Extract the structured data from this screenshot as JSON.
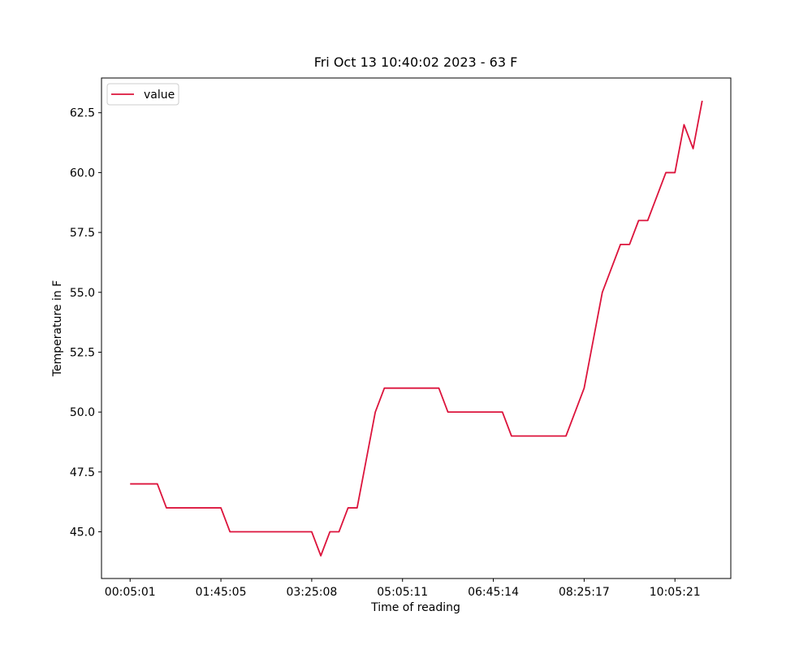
{
  "chart_data": {
    "type": "line",
    "title": "Fri Oct 13 10:40:02 2023 - 63 F",
    "xlabel": "Time of reading",
    "ylabel": "Temperature in F",
    "categories": [
      "00:05:01",
      null,
      null,
      null,
      null,
      null,
      null,
      null,
      null,
      null,
      "01:45:05",
      null,
      null,
      null,
      null,
      null,
      null,
      null,
      null,
      null,
      "03:25:08",
      null,
      null,
      null,
      null,
      null,
      null,
      null,
      null,
      null,
      "05:05:11",
      null,
      null,
      null,
      null,
      null,
      null,
      null,
      null,
      null,
      "06:45:14",
      null,
      null,
      null,
      null,
      null,
      null,
      null,
      null,
      null,
      "08:25:17",
      null,
      null,
      null,
      null,
      null,
      null,
      null,
      null,
      null,
      "10:05:21",
      null,
      null,
      null
    ],
    "series": [
      {
        "name": "value",
        "color": "#dc143c",
        "values": [
          47,
          47,
          47,
          47,
          46,
          46,
          46,
          46,
          46,
          46,
          46,
          45,
          45,
          45,
          45,
          45,
          45,
          45,
          45,
          45,
          45,
          44,
          45,
          45,
          46,
          46,
          48,
          50,
          51,
          51,
          51,
          51,
          51,
          51,
          51,
          50,
          50,
          50,
          50,
          50,
          50,
          50,
          49,
          49,
          49,
          49,
          49,
          49,
          49,
          50,
          51,
          53,
          55,
          56,
          57,
          57,
          58,
          58,
          59,
          60,
          60,
          62,
          61,
          63
        ]
      }
    ],
    "ylim": [
      43.05,
      63.95
    ],
    "yticks": [
      {
        "value": 45,
        "label": "45.0"
      },
      47.5,
      {
        "value": 50,
        "label": "50.0"
      },
      52.5,
      {
        "value": 55,
        "label": "55.0"
      },
      57.5,
      {
        "value": 60,
        "label": "60.0"
      },
      62.5
    ],
    "legend": "upper left"
  }
}
